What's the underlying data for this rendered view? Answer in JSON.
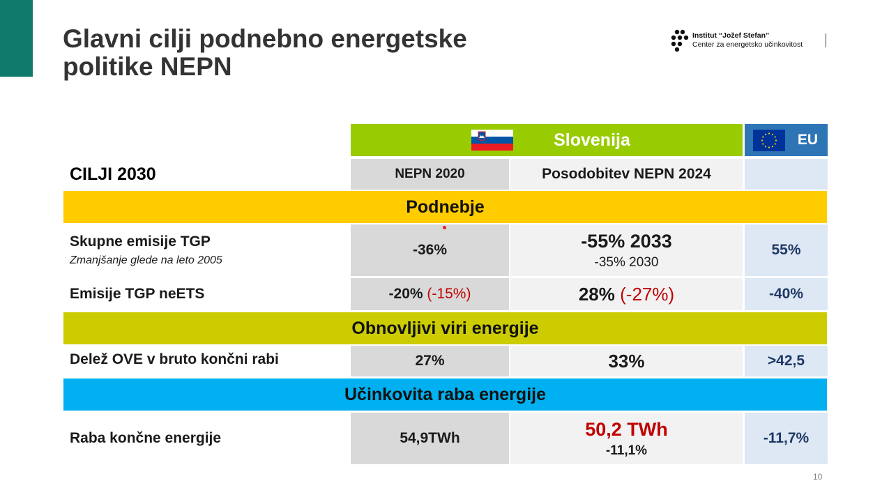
{
  "slide": {
    "title_line1": "Glavni cilji podnebno energetske",
    "title_line2": "politike NEPN",
    "page_number": "10"
  },
  "logo": {
    "line1": "Institut “Jožef Stefan”",
    "line2": "Center za energetsko učinkovitost"
  },
  "colors": {
    "accent_teal": "#0f7b6c",
    "slovenija_green": "#99cc00",
    "eu_blue": "#2e75b6",
    "podnebje_yellow": "#ffcc00",
    "obnovljivi_olive": "#cccc00",
    "ucinkovita_cyan": "#00b0f0",
    "highlight_red": "#c00000",
    "eu_value_navy": "#1f3864"
  },
  "table": {
    "header_slovenija": "Slovenija",
    "header_eu": "EU",
    "row_label_header": "CILJI 2030",
    "col_nepn2020": "NEPN 2020",
    "col_posodobitev": "Posodobitev NEPN 2024",
    "sections": {
      "podnebje": "Podnebje",
      "obnovljivi": "Obnovljivi viri energije",
      "ucinkovita": "Učinkovita raba energije"
    },
    "rows": {
      "skupne": {
        "label": "Skupne emisije TGP",
        "sublabel": "Zmanjšanje glede na leto 2005",
        "nepn2020": "-36%",
        "update_main": "-55% 2033",
        "update_sub": "-35% 2030",
        "eu": "55%"
      },
      "neets": {
        "label": "Emisije TGP neETS",
        "nepn2020_main": "-20%",
        "nepn2020_paren": "(-15%)",
        "update_main": "28%",
        "update_paren": "(-27%)",
        "eu": "-40%"
      },
      "ove": {
        "label": "Delež OVE v bruto končni rabi",
        "nepn2020": "27%",
        "update": "33%",
        "eu": ">42,5"
      },
      "raba": {
        "label": "Raba končne energije",
        "nepn2020": "54,9TWh",
        "update_main": "50,2 TWh",
        "update_sub": "-11,1%",
        "eu": "-11,7%"
      }
    }
  }
}
